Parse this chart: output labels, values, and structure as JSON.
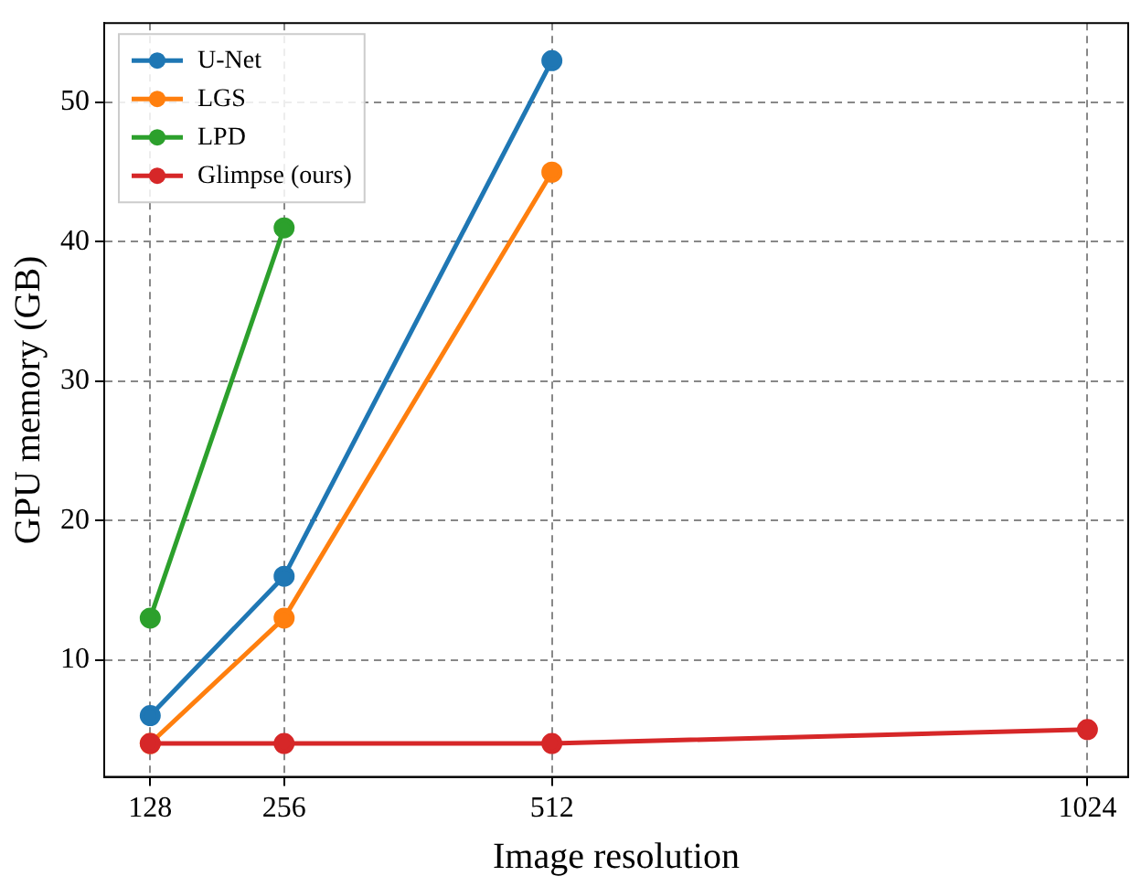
{
  "chart_data": {
    "type": "line",
    "xlabel": "Image resolution",
    "ylabel": "GPU memory (GB)",
    "xlim": [
      84,
      1063
    ],
    "xticks": [
      128,
      256,
      512,
      1024
    ],
    "ylim": [
      1.6,
      55.7
    ],
    "yticks": [
      10,
      20,
      30,
      40,
      50
    ],
    "series": [
      {
        "name": "U-Net",
        "color": "#1f77b4",
        "x": [
          128,
          256,
          512
        ],
        "values": [
          6,
          16,
          53
        ]
      },
      {
        "name": "LGS",
        "color": "#ff7f0e",
        "x": [
          128,
          256,
          512
        ],
        "values": [
          4,
          13,
          45
        ]
      },
      {
        "name": "LPD",
        "color": "#2ca02c",
        "x": [
          128,
          256
        ],
        "values": [
          13,
          41
        ]
      },
      {
        "name": "Glimpse (ours)",
        "color": "#d62728",
        "x": [
          128,
          256,
          512,
          1024
        ],
        "values": [
          4,
          4,
          4,
          5
        ]
      }
    ],
    "grid": true,
    "legend": "top left",
    "marker": "circle",
    "line_style": "solid"
  }
}
